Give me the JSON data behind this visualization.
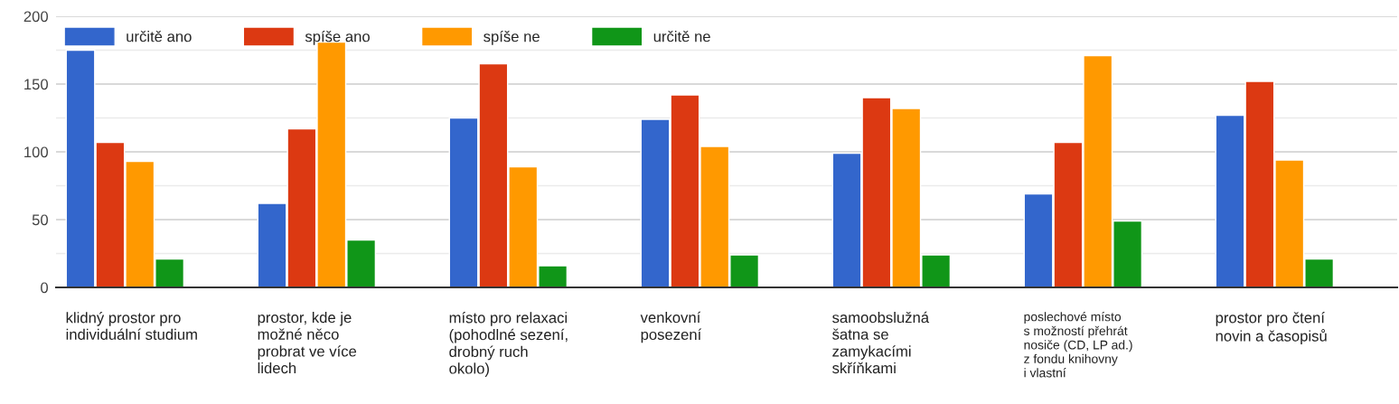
{
  "chart_data": {
    "type": "bar",
    "categories": [
      "klidný prostor pro\nindividuální studium",
      "prostor, kde je\nmožné něco\nprobrat ve více\nlidech",
      "místo pro relaxaci\n(pohodlné sezení,\ndrobný ruch\nokolo)",
      "venkovní\nposezení",
      "samoobslužná\nšatna se\nzamykacími\nskříňkami",
      "poslechové místo\ns možností přehrát\nnosiče (CD, LP ad.)\nz fondu knihovny\ni vlastní",
      "prostor pro čtení\nnovin a časopisů"
    ],
    "series": [
      {
        "name": "určitě ano",
        "color": "#3366cc",
        "values": [
          175,
          62,
          125,
          124,
          99,
          69,
          127
        ]
      },
      {
        "name": "spíše ano",
        "color": "#dc3912",
        "values": [
          107,
          117,
          165,
          142,
          140,
          107,
          152
        ]
      },
      {
        "name": "spíše ne",
        "color": "#ff9900",
        "values": [
          93,
          181,
          89,
          104,
          132,
          171,
          94
        ]
      },
      {
        "name": "určitě ne",
        "color": "#109618",
        "values": [
          21,
          35,
          16,
          24,
          24,
          49,
          21
        ]
      }
    ],
    "ylim": [
      0,
      200
    ],
    "yticks": [
      0,
      {
        "value": 25,
        "label": null
      },
      50,
      {
        "value": 75,
        "label": null
      },
      100,
      {
        "value": 125,
        "label": null
      },
      150,
      {
        "value": 175,
        "label": null
      },
      200
    ],
    "grid": "y",
    "legend": "top left"
  }
}
